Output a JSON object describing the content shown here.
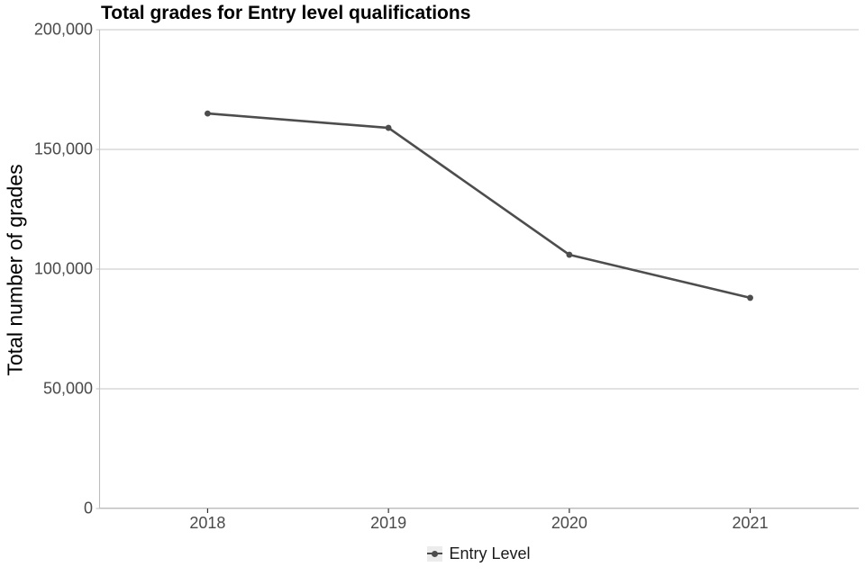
{
  "chart_data": {
    "type": "line",
    "title": "Total grades for Entry level qualifications",
    "xlabel": "",
    "ylabel": "Total number of grades",
    "categories": [
      "2018",
      "2019",
      "2020",
      "2021"
    ],
    "series": [
      {
        "name": "Entry Level",
        "values": [
          165000,
          159000,
          106000,
          88000
        ]
      }
    ],
    "ylim": [
      0,
      200000
    ],
    "yticks": [
      0,
      50000,
      100000,
      150000,
      200000
    ],
    "ytick_labels": [
      "0",
      "50,000",
      "100,000",
      "150,000",
      "200,000"
    ],
    "grid": "horizontal-major-only",
    "legend_position": "bottom",
    "marker": "point",
    "colors": {
      "series": "#4d4d4d",
      "grid": "#c6c6c6",
      "axis_line": "#bdbdbd",
      "xtick_mark": "#333333",
      "ytick_mark": "#c6c6c6",
      "tick_label": "#4a4a4a",
      "title": "#000000",
      "legend_key_bg": "#ececec",
      "legend_text": "#1a1a1a",
      "background": "#ffffff"
    }
  }
}
